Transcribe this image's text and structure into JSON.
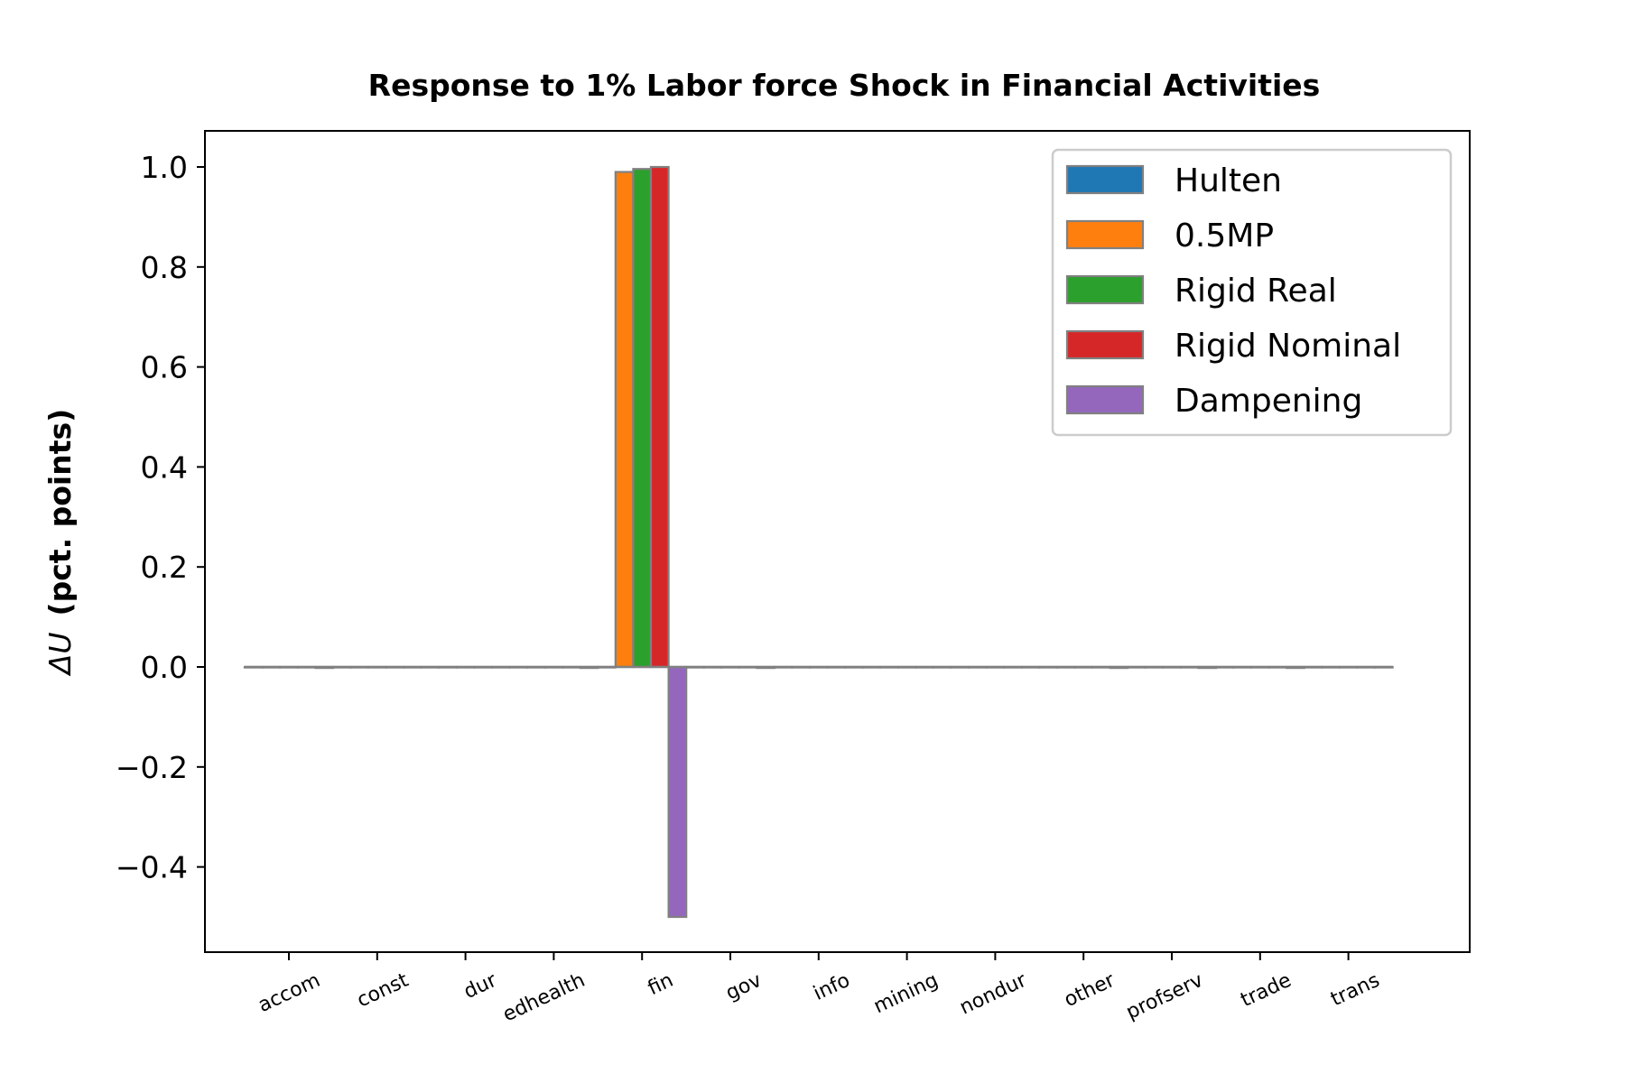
{
  "chart_data": {
    "type": "bar",
    "title": "Response to 1% Labor force Shock in Financial Activities",
    "xlabel": "",
    "ylabel_symbol": "ΔU",
    "ylabel_text": "(pct. points)",
    "ylim": [
      -0.57,
      1.075
    ],
    "yticks": [
      -0.4,
      -0.2,
      0.0,
      0.2,
      0.4,
      0.6,
      0.8,
      1.0
    ],
    "ytick_labels": [
      "−0.4",
      "−0.2",
      "0.0",
      "0.2",
      "0.4",
      "0.6",
      "0.8",
      "1.0"
    ],
    "categories": [
      "accom",
      "const",
      "dur",
      "edhealth",
      "fin",
      "gov",
      "info",
      "mining",
      "nondur",
      "other",
      "profserv",
      "trade",
      "trans"
    ],
    "grid": false,
    "legend_position": "top-right",
    "bar_edge_color": "#808080",
    "series": [
      {
        "name": "Hulten",
        "color": "#1f77b4",
        "values": [
          0,
          0,
          0,
          0,
          0,
          0,
          0,
          0,
          0,
          0,
          0,
          0,
          0
        ]
      },
      {
        "name": "0.5MP",
        "color": "#ff7f0e",
        "values": [
          0,
          0,
          0,
          0,
          0.99,
          0,
          0,
          0,
          0,
          0,
          0,
          0,
          0
        ]
      },
      {
        "name": "Rigid Real",
        "color": "#2ca02c",
        "values": [
          0,
          0,
          0,
          0,
          0.996,
          0,
          0,
          0,
          0,
          0,
          0,
          0,
          0
        ]
      },
      {
        "name": "Rigid Nominal",
        "color": "#d62728",
        "values": [
          0,
          0,
          0,
          0,
          1.0,
          0,
          0,
          0,
          0,
          0,
          0,
          0,
          0
        ]
      },
      {
        "name": "Dampening",
        "color": "#9467bd",
        "values": [
          -0.002,
          0,
          0,
          -0.002,
          -0.5,
          -0.002,
          0,
          0,
          0,
          -0.002,
          -0.002,
          -0.002,
          0
        ]
      }
    ]
  }
}
